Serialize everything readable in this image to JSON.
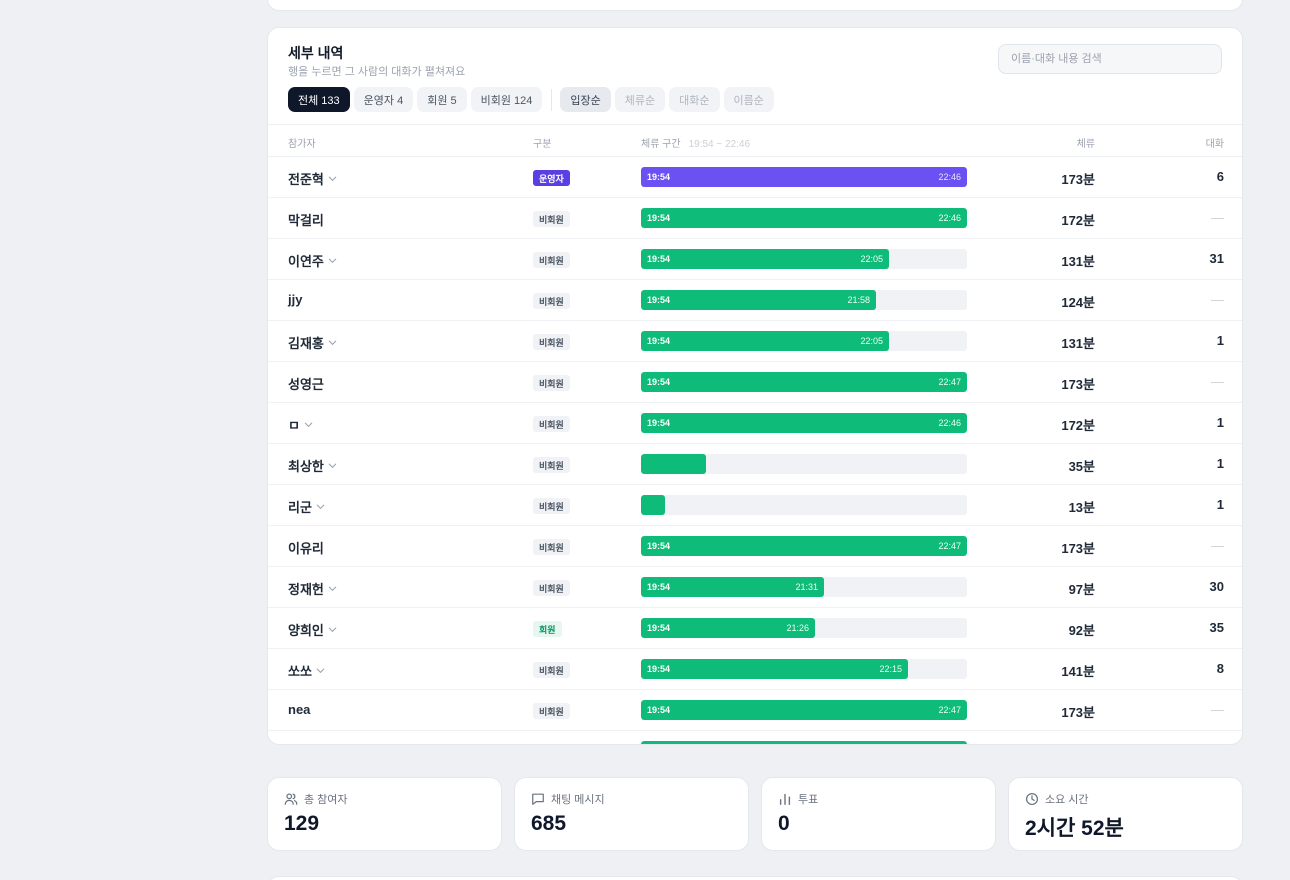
{
  "detail": {
    "title": "세부 내역",
    "subtitle": "행을 누르면 그 사람의 대화가 펼쳐져요",
    "search_placeholder": "이름·대화 내용 검색",
    "filters": [
      "전체 133",
      "운영자 4",
      "회원 5",
      "비회원 124"
    ],
    "sorts": [
      "입장순",
      "체류순",
      "대화순",
      "이름순"
    ],
    "active_filter": "전체 133",
    "active_sort": "입장순",
    "columns": {
      "participant": "참가자",
      "category": "구분",
      "stay_range": "체류 구간",
      "stay_range_hint": "19:54 ~ 22:46",
      "stay": "체류",
      "chat": "대화"
    },
    "rows": [
      {
        "name": "전준혁",
        "expandable": true,
        "badge": "운영자",
        "badge_type": "op",
        "start": "19:54",
        "end": "22:46",
        "fraction": 1.0,
        "stay": "173분",
        "chat": "6"
      },
      {
        "name": "막걸리",
        "expandable": false,
        "badge": "비회원",
        "badge_type": "guest",
        "start": "19:54",
        "end": "22:46",
        "fraction": 1.0,
        "stay": "172분",
        "chat": "—"
      },
      {
        "name": "이연주",
        "expandable": true,
        "badge": "비회원",
        "badge_type": "guest",
        "start": "19:54",
        "end": "22:05",
        "fraction": 0.76,
        "stay": "131분",
        "chat": "31"
      },
      {
        "name": "jjy",
        "expandable": false,
        "badge": "비회원",
        "badge_type": "guest",
        "start": "19:54",
        "end": "21:58",
        "fraction": 0.72,
        "stay": "124분",
        "chat": "—"
      },
      {
        "name": "김재홍",
        "expandable": true,
        "badge": "비회원",
        "badge_type": "guest",
        "start": "19:54",
        "end": "22:05",
        "fraction": 0.76,
        "stay": "131분",
        "chat": "1"
      },
      {
        "name": "성영근",
        "expandable": false,
        "badge": "비회원",
        "badge_type": "guest",
        "start": "19:54",
        "end": "22:47",
        "fraction": 1.0,
        "stay": "173분",
        "chat": "—"
      },
      {
        "name": "ㅁ",
        "expandable": true,
        "badge": "비회원",
        "badge_type": "guest",
        "start": "19:54",
        "end": "22:46",
        "fraction": 1.0,
        "stay": "172분",
        "chat": "1"
      },
      {
        "name": "최상한",
        "expandable": true,
        "badge": "비회원",
        "badge_type": "guest",
        "start": "",
        "end": "",
        "fraction": 0.2,
        "stay": "35분",
        "chat": "1"
      },
      {
        "name": "리군",
        "expandable": true,
        "badge": "비회원",
        "badge_type": "guest",
        "start": "",
        "end": "",
        "fraction": 0.075,
        "stay": "13분",
        "chat": "1"
      },
      {
        "name": "이유리",
        "expandable": false,
        "badge": "비회원",
        "badge_type": "guest",
        "start": "19:54",
        "end": "22:47",
        "fraction": 1.0,
        "stay": "173분",
        "chat": "—"
      },
      {
        "name": "정재헌",
        "expandable": true,
        "badge": "비회원",
        "badge_type": "guest",
        "start": "19:54",
        "end": "21:31",
        "fraction": 0.56,
        "stay": "97분",
        "chat": "30"
      },
      {
        "name": "양희인",
        "expandable": true,
        "badge": "회원",
        "badge_type": "member",
        "start": "19:54",
        "end": "21:26",
        "fraction": 0.535,
        "stay": "92분",
        "chat": "35"
      },
      {
        "name": "쏘쏘",
        "expandable": true,
        "badge": "비회원",
        "badge_type": "guest",
        "start": "19:54",
        "end": "22:15",
        "fraction": 0.82,
        "stay": "141분",
        "chat": "8"
      },
      {
        "name": "nea",
        "expandable": false,
        "badge": "비회원",
        "badge_type": "guest",
        "start": "19:54",
        "end": "22:47",
        "fraction": 1.0,
        "stay": "173분",
        "chat": "—"
      },
      {
        "name": "",
        "expandable": false,
        "badge": "",
        "badge_type": "",
        "start": "",
        "end": "",
        "fraction": 1.0,
        "stay": "",
        "chat": ""
      }
    ]
  },
  "stats": [
    {
      "label": "총 참여자",
      "value": "129",
      "icon": "users-icon"
    },
    {
      "label": "채팅 메시지",
      "value": "685",
      "icon": "chat-icon"
    },
    {
      "label": "투표",
      "value": "0",
      "icon": "bar-chart-icon"
    },
    {
      "label": "소요 시간",
      "value": "2시간 52분",
      "icon": "clock-icon"
    }
  ],
  "colors": {
    "accent_green": "#0ebb78",
    "operator_purple": "#6b50f2",
    "active_chip": "#0f172a",
    "background": "#eef0f3"
  }
}
